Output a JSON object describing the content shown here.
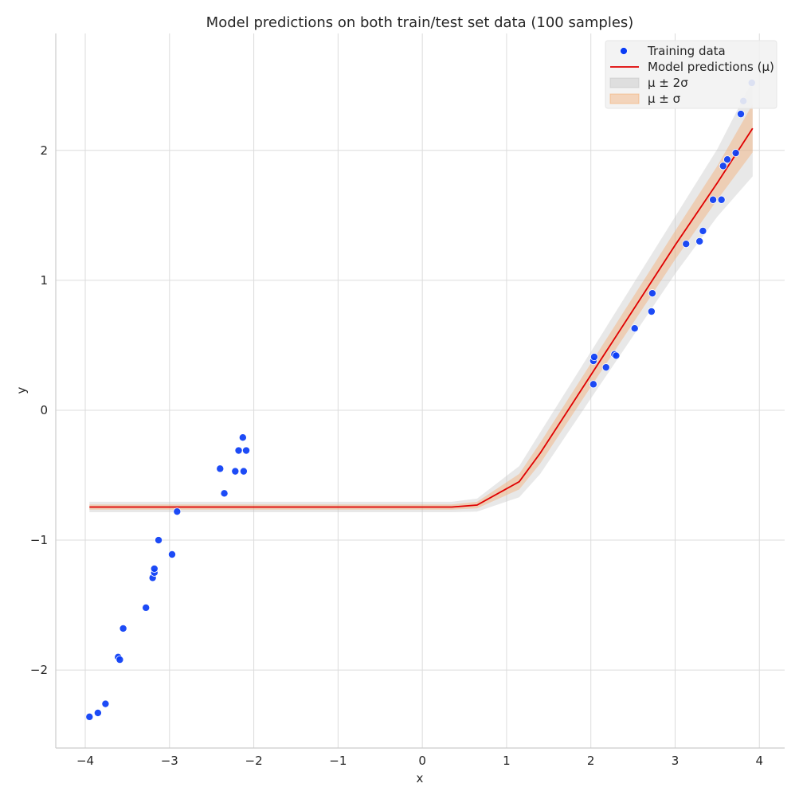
{
  "chart_data": {
    "type": "scatter",
    "title": "Model predictions on both train/test set data (100 samples)",
    "xlabel": "x",
    "ylabel": "y",
    "xlim": [
      -4.35,
      4.3
    ],
    "ylim": [
      -2.6,
      2.9
    ],
    "xticks": [
      -4,
      -3,
      -2,
      -1,
      0,
      1,
      2,
      3,
      4
    ],
    "yticks": [
      -2,
      -1,
      0,
      1,
      2
    ],
    "xtick_labels": [
      "−4",
      "−3",
      "−2",
      "−1",
      "0",
      "1",
      "2",
      "3",
      "4"
    ],
    "ytick_labels": [
      "−2",
      "−1",
      "0",
      "1",
      "2"
    ],
    "grid": true,
    "legend_position": "top-right",
    "legend": [
      {
        "label": "Training data",
        "kind": "point",
        "color": "#0a3cf5"
      },
      {
        "label": "Model predictions (μ)",
        "kind": "line",
        "color": "#e00000"
      },
      {
        "label": "μ ± 2σ",
        "kind": "band",
        "color": "#c0c0c0"
      },
      {
        "label": "μ ± σ",
        "kind": "band",
        "color": "#f4a460"
      }
    ],
    "series": [
      {
        "name": "Training data",
        "type": "scatter",
        "color": "#0a3cf5",
        "points": [
          [
            -3.95,
            -2.36
          ],
          [
            -3.85,
            -2.33
          ],
          [
            -3.76,
            -2.26
          ],
          [
            -3.61,
            -1.9
          ],
          [
            -3.59,
            -1.92
          ],
          [
            -3.55,
            -1.68
          ],
          [
            -3.28,
            -1.52
          ],
          [
            -3.2,
            -1.29
          ],
          [
            -3.18,
            -1.25
          ],
          [
            -3.18,
            -1.22
          ],
          [
            -3.13,
            -1.0
          ],
          [
            -2.97,
            -1.11
          ],
          [
            -2.91,
            -0.78
          ],
          [
            -2.4,
            -0.45
          ],
          [
            -2.35,
            -0.64
          ],
          [
            -2.22,
            -0.47
          ],
          [
            -2.18,
            -0.31
          ],
          [
            -2.13,
            -0.21
          ],
          [
            -2.12,
            -0.47
          ],
          [
            -2.09,
            -0.31
          ],
          [
            2.03,
            0.2
          ],
          [
            2.03,
            0.38
          ],
          [
            2.04,
            0.41
          ],
          [
            2.18,
            0.33
          ],
          [
            2.28,
            0.43
          ],
          [
            2.3,
            0.42
          ],
          [
            2.52,
            0.63
          ],
          [
            2.72,
            0.76
          ],
          [
            2.73,
            0.9
          ],
          [
            3.13,
            1.28
          ],
          [
            3.29,
            1.3
          ],
          [
            3.33,
            1.38
          ],
          [
            3.45,
            1.62
          ],
          [
            3.55,
            1.62
          ],
          [
            3.57,
            1.88
          ],
          [
            3.62,
            1.93
          ],
          [
            3.72,
            1.98
          ],
          [
            3.78,
            2.28
          ],
          [
            3.81,
            2.38
          ],
          [
            3.91,
            2.52
          ]
        ]
      },
      {
        "name": "Model predictions (μ)",
        "type": "line",
        "color": "#e00000",
        "x": [
          -3.95,
          -2.0,
          0.0,
          0.35,
          0.65,
          1.15,
          1.4,
          2.0,
          2.5,
          3.0,
          3.5,
          3.92
        ],
        "y": [
          -0.745,
          -0.745,
          -0.745,
          -0.745,
          -0.73,
          -0.55,
          -0.33,
          0.27,
          0.77,
          1.27,
          1.75,
          2.17
        ],
        "sigma": [
          0.02,
          0.02,
          0.02,
          0.02,
          0.025,
          0.06,
          0.08,
          0.09,
          0.1,
          0.11,
          0.13,
          0.185
        ]
      }
    ]
  }
}
